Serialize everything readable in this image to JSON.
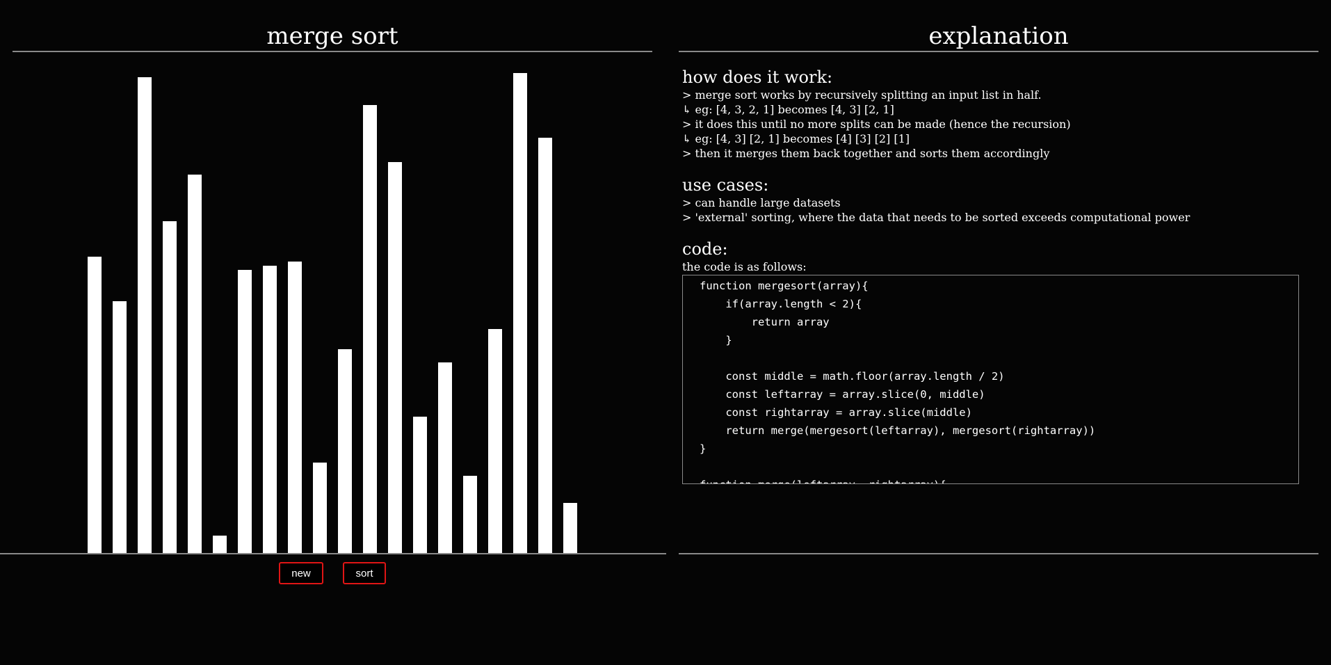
{
  "left": {
    "title": "merge sort",
    "buttons": {
      "new_label": "new",
      "sort_label": "sort"
    }
  },
  "chart_data": {
    "type": "bar",
    "values": [
      353,
      300,
      567,
      395,
      451,
      21,
      337,
      342,
      347,
      108,
      243,
      534,
      466,
      162,
      227,
      92,
      267,
      572,
      495,
      60
    ],
    "ylim": [
      0,
      580
    ],
    "bar_color": "#ffffff",
    "grid": false
  },
  "right": {
    "title": "explanation",
    "how": {
      "heading": "how does it work:",
      "lines": [
        "> merge sort works by recursively splitting an input list in half.",
        "↳ eg: [4, 3, 2, 1] becomes [4, 3] [2, 1]",
        "> it does this until no more splits can be made (hence the recursion)",
        "↳ eg: [4, 3] [2, 1] becomes [4] [3] [2] [1]",
        "> then it merges them back together and sorts them accordingly"
      ]
    },
    "use": {
      "heading": "use cases:",
      "lines": [
        "> can handle large datasets",
        "> 'external' sorting, where the data that needs to be sorted exceeds computational power"
      ]
    },
    "code": {
      "heading": "code:",
      "intro": "the code is as follows:",
      "source": "function mergesort(array){\n    if(array.length < 2){\n        return array\n    }\n\n    const middle = math.floor(array.length / 2)\n    const leftarray = array.slice(0, middle)\n    const rightarray = array.slice(middle)\n    return merge(mergesort(leftarray), mergesort(rightarray))\n}\n\nfunction merge(leftarray, rightarray){"
    }
  },
  "colors": {
    "background": "#050505",
    "text": "#ffffff",
    "rule": "#8a8a8a",
    "button_border": "#e01515"
  }
}
